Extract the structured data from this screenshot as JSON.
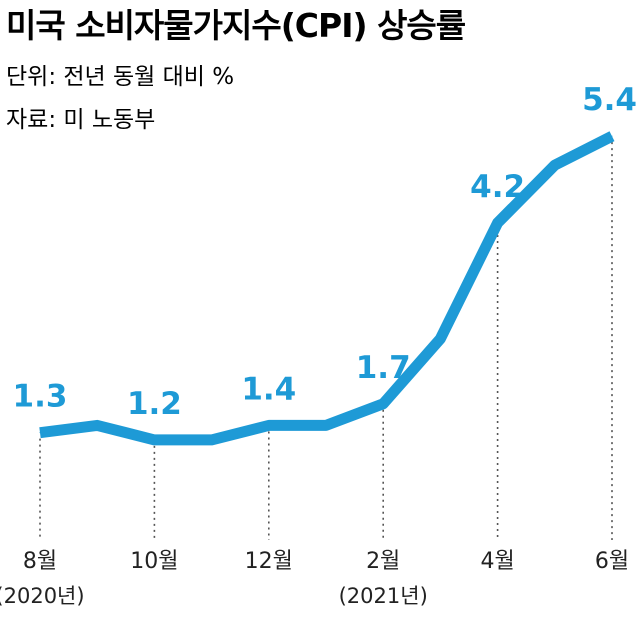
{
  "title": "미국 소비자물가지수(CPI) 상승률",
  "unit_note": "단위: 전년 동월 대비 %",
  "source_note": "자료: 미 노동부",
  "colors": {
    "line": "#1e9ad6",
    "text": "#222222",
    "guide": "#555555"
  },
  "chart_data": {
    "type": "line",
    "title": "미국 소비자물가지수(CPI) 상승률",
    "xlabel": "",
    "ylabel": "",
    "x": [
      "2020-08",
      "2020-09",
      "2020-10",
      "2020-11",
      "2020-12",
      "2021-01",
      "2021-02",
      "2021-03",
      "2021-04",
      "2021-05",
      "2021-06"
    ],
    "values": [
      1.3,
      1.4,
      1.2,
      1.2,
      1.4,
      1.4,
      1.7,
      2.6,
      4.2,
      5.0,
      5.4
    ],
    "data_labels": [
      {
        "index": 0,
        "text": "1.3"
      },
      {
        "index": 2,
        "text": "1.2"
      },
      {
        "index": 4,
        "text": "1.4"
      },
      {
        "index": 6,
        "text": "1.7"
      },
      {
        "index": 8,
        "text": "4.2"
      },
      {
        "index": 10,
        "text": "5.4"
      }
    ],
    "x_ticks": [
      {
        "index": 0,
        "label": "8월",
        "sublabel": "(2020년)"
      },
      {
        "index": 2,
        "label": "10월",
        "sublabel": ""
      },
      {
        "index": 4,
        "label": "12월",
        "sublabel": ""
      },
      {
        "index": 6,
        "label": "2월",
        "sublabel": "(2021년)"
      },
      {
        "index": 8,
        "label": "4월",
        "sublabel": ""
      },
      {
        "index": 10,
        "label": "6월",
        "sublabel": ""
      }
    ],
    "ylim": [
      0.3,
      5.9
    ],
    "grid": false,
    "legend": "none"
  }
}
